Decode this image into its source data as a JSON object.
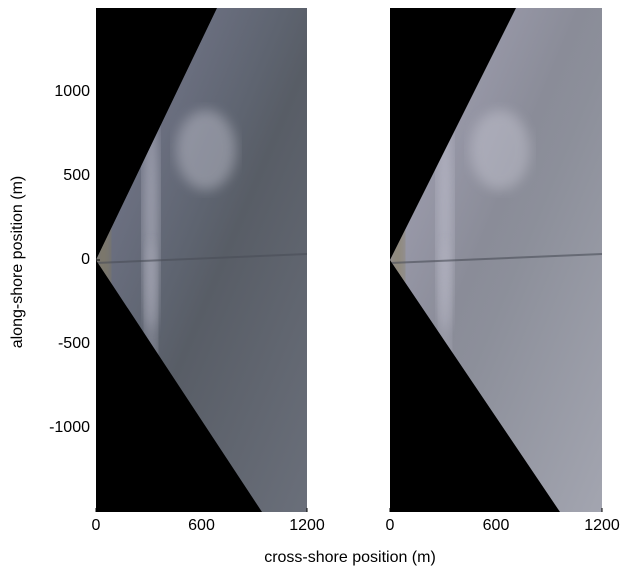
{
  "chart_data": [
    {
      "type": "image",
      "xlim": [
        0,
        1200
      ],
      "ylim": [
        -1500,
        1500
      ],
      "xticks": [
        0,
        600,
        1200
      ],
      "yticks": [
        -1000,
        -500,
        0,
        500,
        1000
      ]
    },
    {
      "type": "image",
      "xlim": [
        0,
        1200
      ],
      "ylim": [
        -1500,
        1500
      ],
      "xticks": [
        0,
        600,
        1200
      ]
    }
  ],
  "xlabel": "cross-shore position (m)",
  "ylabel": "along-shore position (m)"
}
